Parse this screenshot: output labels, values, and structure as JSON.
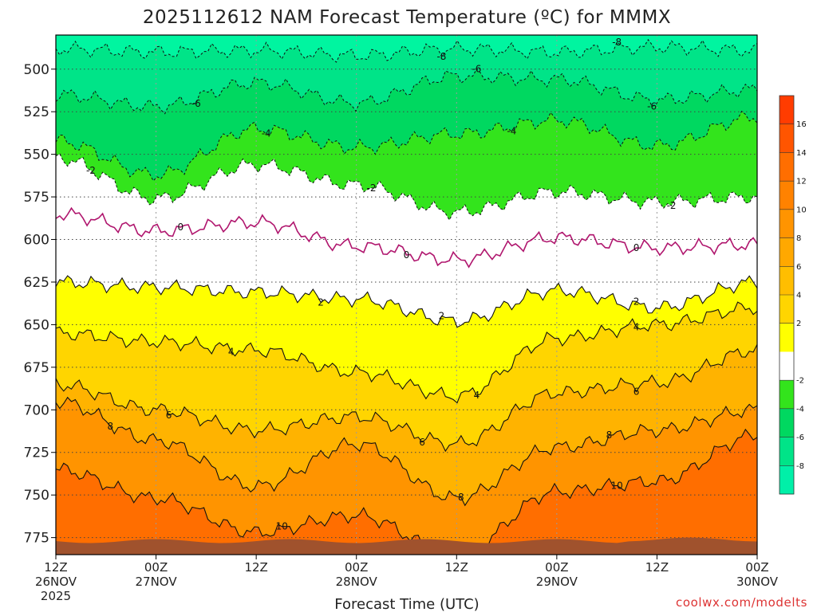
{
  "chart_data": {
    "type": "heatmap",
    "title": "2025112612 NAM Forecast Temperature (ºC) for MMMX",
    "xlabel": "Forecast Time (UTC)",
    "ylabel": "",
    "y_axis_reversed": true,
    "ylim": [
      480,
      785
    ],
    "y_ticks": [
      "500",
      "525",
      "550",
      "575",
      "600",
      "625",
      "650",
      "675",
      "700",
      "725",
      "750",
      "775"
    ],
    "x_ticks": [
      {
        "hour": "12Z",
        "date": "26NOV",
        "year": "2025"
      },
      {
        "hour": "00Z",
        "date": "27NOV",
        "year": ""
      },
      {
        "hour": "12Z",
        "date": "",
        "year": ""
      },
      {
        "hour": "00Z",
        "date": "28NOV",
        "year": ""
      },
      {
        "hour": "12Z",
        "date": "",
        "year": ""
      },
      {
        "hour": "00Z",
        "date": "29NOV",
        "year": ""
      },
      {
        "hour": "12Z",
        "date": "",
        "year": ""
      },
      {
        "hour": "00Z",
        "date": "30NOV",
        "year": ""
      }
    ],
    "colorbar_ticks": [
      "16",
      "14",
      "12",
      "10",
      "8",
      "6",
      "4",
      "2",
      "-2",
      "-4",
      "-6",
      "-8"
    ],
    "contour_labels": [
      "-8",
      "-8",
      "-6",
      "-6",
      "-6",
      "-4",
      "-4",
      "-2",
      "-2",
      "-2",
      "0",
      "0",
      "0",
      "2",
      "2",
      "2",
      "4",
      "4",
      "4",
      "6",
      "6",
      "6",
      "8",
      "8",
      "8",
      "10",
      "10"
    ],
    "series": [
      {
        "name": "-8",
        "values": [
          488,
          490,
          489,
          492,
          488,
          490,
          487,
          489
        ]
      },
      {
        "name": "-6",
        "values": [
          515,
          522,
          508,
          520,
          504,
          506,
          518,
          512
        ]
      },
      {
        "name": "-4",
        "values": [
          542,
          562,
          535,
          546,
          538,
          530,
          545,
          528
        ]
      },
      {
        "name": "-2",
        "values": [
          552,
          576,
          556,
          568,
          584,
          572,
          578,
          575
        ]
      },
      {
        "name": "0",
        "values": [
          585,
          595,
          590,
          604,
          612,
          599,
          605,
          603
        ]
      },
      {
        "name": "2",
        "values": [
          625,
          628,
          631,
          635,
          648,
          630,
          640,
          625
        ]
      },
      {
        "name": "4",
        "values": [
          655,
          660,
          665,
          678,
          692,
          658,
          650,
          640
        ]
      },
      {
        "name": "6",
        "values": [
          685,
          700,
          712,
          704,
          720,
          690,
          684,
          665
        ]
      },
      {
        "name": "8",
        "values": [
          695,
          718,
          745,
          720,
          752,
          722,
          712,
          700
        ]
      },
      {
        "name": "10",
        "values": [
          735,
          752,
          772,
          762,
          785,
          748,
          742,
          715
        ]
      }
    ]
  },
  "credit": "coolwx.com/modelts",
  "colors": {
    "surface": "#a0522d",
    "zero_line": "#b0166e",
    "contour": "#111111"
  }
}
